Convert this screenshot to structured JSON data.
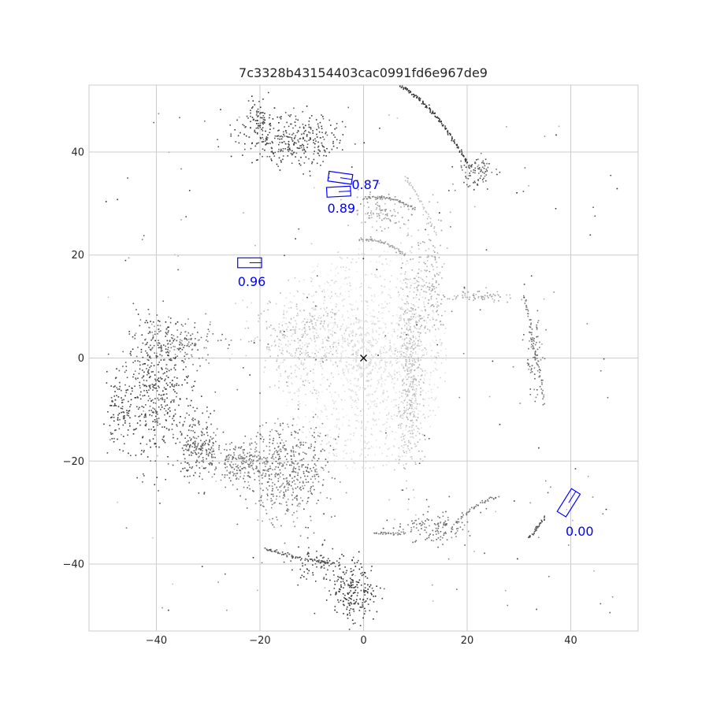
{
  "chart_data": {
    "type": "scatter",
    "title": "7c3328b43154403cac0991fd6e967de9",
    "xlabel": "",
    "ylabel": "",
    "xlim": [
      -53,
      53
    ],
    "ylim": [
      -53,
      53
    ],
    "grid": true,
    "x_ticks": [
      -40,
      -20,
      0,
      20,
      40
    ],
    "y_ticks": [
      -40,
      -20,
      0,
      20,
      40
    ],
    "ego_marker": {
      "x": 0,
      "y": 0,
      "symbol": "x"
    },
    "boxes": [
      {
        "score": "0.87",
        "cx": -4.5,
        "cy": 35.0,
        "length": 4.6,
        "width": 1.9,
        "yaw_deg": -8,
        "color": "#0000ff",
        "label_x": -2.3,
        "label_y": 32.8
      },
      {
        "score": "0.89",
        "cx": -4.8,
        "cy": 32.3,
        "length": 4.6,
        "width": 1.9,
        "yaw_deg": 3,
        "color": "#0000ff",
        "label_x": -7.0,
        "label_y": 28.2
      },
      {
        "score": "0.96",
        "cx": -22.0,
        "cy": 18.5,
        "length": 4.6,
        "width": 1.9,
        "yaw_deg": 0,
        "color": "#0000ff",
        "label_x": -24.3,
        "label_y": 14.0
      },
      {
        "score": "0.00",
        "cx": 39.6,
        "cy": -28.1,
        "length": 5.2,
        "width": 2.0,
        "yaw_deg": 58,
        "color": "#0000ff",
        "label_x": 39.0,
        "label_y": -34.5
      }
    ],
    "point_clusters": [
      {
        "cx": 0,
        "cy": 0,
        "rx": 22,
        "ry": 22,
        "n": 1500,
        "shade": [
          210,
          240
        ],
        "ring": true
      },
      {
        "cx": 9,
        "cy": -2,
        "rx": 2.5,
        "ry": 20,
        "n": 450,
        "shade": [
          170,
          215
        ]
      },
      {
        "cx": -12,
        "cy": 4,
        "rx": 10,
        "ry": 9,
        "n": 350,
        "shade": [
          170,
          225
        ]
      },
      {
        "cx": -15,
        "cy": -22,
        "rx": 8,
        "ry": 10,
        "n": 500,
        "shade": [
          80,
          160
        ]
      },
      {
        "cx": -24,
        "cy": -20,
        "rx": 6,
        "ry": 4,
        "n": 200,
        "shade": [
          90,
          150
        ]
      },
      {
        "cx": -40,
        "cy": -6,
        "rx": 6,
        "ry": 14,
        "n": 450,
        "shade": [
          40,
          100
        ]
      },
      {
        "cx": -32,
        "cy": -17,
        "rx": 4,
        "ry": 6,
        "n": 200,
        "shade": [
          60,
          120
        ]
      },
      {
        "cx": -35,
        "cy": 3,
        "rx": 8,
        "ry": 4,
        "n": 150,
        "shade": [
          80,
          150
        ]
      },
      {
        "cx": -47,
        "cy": -10,
        "rx": 3,
        "ry": 8,
        "n": 100,
        "shade": [
          40,
          90
        ]
      },
      {
        "cx": -14,
        "cy": 42,
        "rx": 10,
        "ry": 5,
        "n": 320,
        "shade": [
          40,
          100
        ]
      },
      {
        "cx": -20,
        "cy": 46,
        "rx": 3,
        "ry": 5,
        "n": 80,
        "shade": [
          40,
          90
        ]
      },
      {
        "cx": 22,
        "cy": 36,
        "rx": 4,
        "ry": 3,
        "n": 90,
        "shade": [
          60,
          120
        ]
      },
      {
        "cx": -2,
        "cy": -45,
        "rx": 4,
        "ry": 6,
        "n": 200,
        "shade": [
          30,
          80
        ]
      },
      {
        "cx": -8,
        "cy": -40,
        "rx": 5,
        "ry": 4,
        "n": 80,
        "shade": [
          40,
          90
        ]
      },
      {
        "cx": 14,
        "cy": -33,
        "rx": 7,
        "ry": 3,
        "n": 120,
        "shade": [
          90,
          140
        ]
      },
      {
        "cx": 3,
        "cy": 28,
        "rx": 6,
        "ry": 3,
        "n": 100,
        "shade": [
          130,
          190
        ]
      },
      {
        "cx": 13,
        "cy": 16,
        "rx": 3,
        "ry": 12,
        "n": 150,
        "shade": [
          150,
          200
        ]
      },
      {
        "cx": 22,
        "cy": 12,
        "rx": 10,
        "ry": 1.2,
        "n": 80,
        "shade": [
          140,
          190
        ]
      },
      {
        "cx": 33,
        "cy": 0,
        "rx": 1.5,
        "ry": 8,
        "n": 70,
        "shade": [
          80,
          140
        ]
      }
    ],
    "point_lines": [
      {
        "from": [
          7,
          53
        ],
        "to": [
          20,
          38
        ],
        "n": 130,
        "shade": 40,
        "curve": 2
      },
      {
        "from": [
          0,
          31
        ],
        "to": [
          10,
          29
        ],
        "n": 60,
        "shade": 120,
        "curve": 1
      },
      {
        "from": [
          -1,
          23
        ],
        "to": [
          8,
          20
        ],
        "n": 60,
        "shade": 150,
        "curve": 1
      },
      {
        "from": [
          -19,
          -37
        ],
        "to": [
          -12,
          -39
        ],
        "n": 40,
        "shade": 70,
        "curve": 0
      },
      {
        "from": [
          -11,
          -39
        ],
        "to": [
          -6,
          -40
        ],
        "n": 30,
        "shade": 70,
        "curve": 0
      },
      {
        "from": [
          32,
          -35
        ],
        "to": [
          35,
          -31
        ],
        "n": 30,
        "shade": 60,
        "curve": 0
      },
      {
        "from": [
          18,
          -32
        ],
        "to": [
          26,
          -27
        ],
        "n": 40,
        "shade": 100,
        "curve": 1
      },
      {
        "from": [
          2,
          -34
        ],
        "to": [
          8,
          -34
        ],
        "n": 30,
        "shade": 110,
        "curve": 0
      },
      {
        "from": [
          31,
          12
        ],
        "to": [
          35,
          -9
        ],
        "n": 60,
        "shade": 110,
        "curve": 1
      },
      {
        "from": [
          8,
          35
        ],
        "to": [
          14,
          24
        ],
        "n": 40,
        "shade": 180,
        "curve": 1
      }
    ],
    "scattered_points": {
      "n": 220,
      "xlim": [
        -50,
        50
      ],
      "ylim": [
        -50,
        50
      ],
      "shade": [
        40,
        200
      ]
    }
  }
}
